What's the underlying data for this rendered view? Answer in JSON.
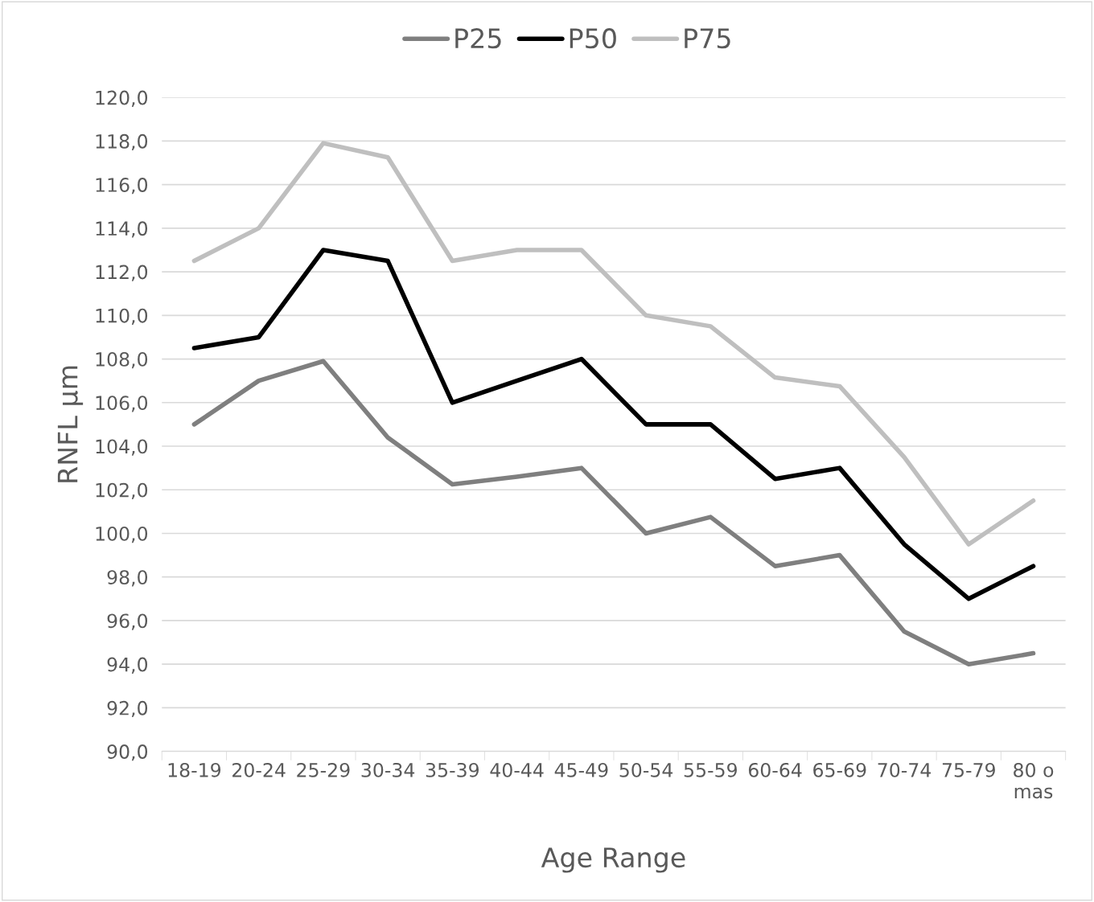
{
  "chart_data": {
    "type": "line",
    "xlabel": "Age Range",
    "ylabel": "RNFL µm",
    "categories": [
      "18-19",
      "20-24",
      "25-29",
      "30-34",
      "35-39",
      "40-44",
      "45-49",
      "50-54",
      "55-59",
      "60-64",
      "65-69",
      "70-74",
      "75-79",
      "80 o\nmas"
    ],
    "series": [
      {
        "name": "P25",
        "color": "#7f7f7f",
        "values": [
          105.0,
          107.0,
          107.9,
          104.4,
          102.25,
          102.6,
          103.0,
          100.0,
          100.75,
          98.5,
          99.0,
          95.5,
          94.0,
          94.5
        ]
      },
      {
        "name": "P50",
        "color": "#000000",
        "values": [
          108.5,
          109.0,
          113.0,
          112.5,
          106.0,
          107.0,
          108.0,
          105.0,
          105.0,
          102.5,
          103.0,
          99.5,
          97.0,
          98.5
        ]
      },
      {
        "name": "P75",
        "color": "#bfbfbf",
        "values": [
          112.5,
          114.0,
          117.9,
          117.25,
          112.5,
          113.0,
          113.0,
          110.0,
          109.5,
          107.15,
          106.75,
          103.5,
          99.5,
          101.5
        ]
      }
    ],
    "ylim": [
      90,
      120
    ],
    "yticks": [
      {
        "value": 90,
        "label": "90,0"
      },
      {
        "value": 92,
        "label": "92,0"
      },
      {
        "value": 94,
        "label": "94,0"
      },
      {
        "value": 96,
        "label": "96,0"
      },
      {
        "value": 98,
        "label": "98,0"
      },
      {
        "value": 100,
        "label": "100,0"
      },
      {
        "value": 102,
        "label": "102,0"
      },
      {
        "value": 104,
        "label": "104,0"
      },
      {
        "value": 106,
        "label": "106,0"
      },
      {
        "value": 108,
        "label": "108,0"
      },
      {
        "value": 110,
        "label": "110,0"
      },
      {
        "value": 112,
        "label": "112,0"
      },
      {
        "value": 114,
        "label": "114,0"
      },
      {
        "value": 116,
        "label": "116,0"
      },
      {
        "value": 118,
        "label": "118,0"
      },
      {
        "value": 120,
        "label": "120,0"
      }
    ],
    "grid": "y",
    "legend": "top",
    "marker": "none",
    "line_style": "solid"
  }
}
